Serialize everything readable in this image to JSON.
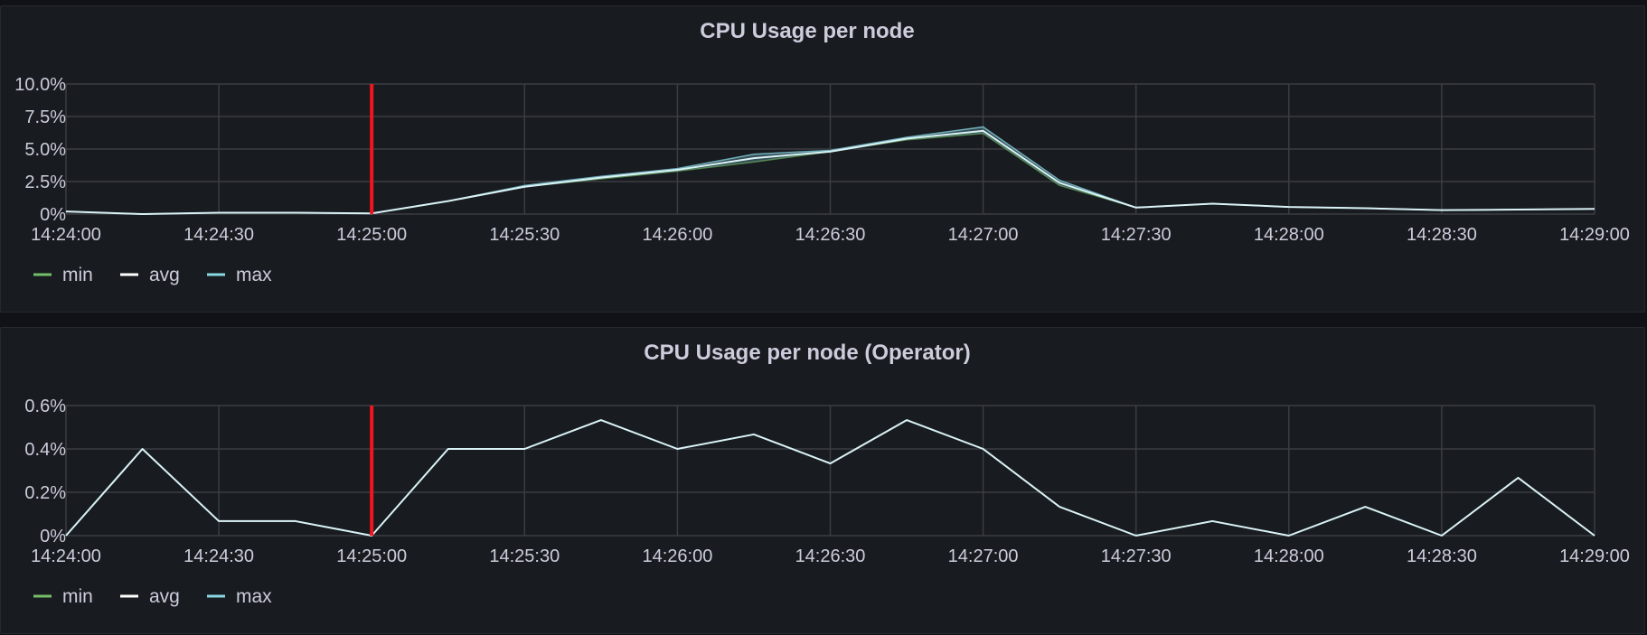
{
  "chart_data": [
    {
      "type": "line",
      "title": "CPU Usage per node",
      "xlabel": "",
      "ylabel": "",
      "y_unit": "%",
      "ylim": [
        0,
        10
      ],
      "yticks": [
        0,
        2.5,
        5,
        7.5,
        10
      ],
      "ytick_labels": [
        "0%",
        "2.5%",
        "5.0%",
        "7.5%",
        "10.0%"
      ],
      "xticks": [
        "14:24:00",
        "14:24:30",
        "14:25:00",
        "14:25:30",
        "14:26:00",
        "14:26:30",
        "14:27:00",
        "14:27:30",
        "14:28:00",
        "14:28:30",
        "14:29:00"
      ],
      "x": [
        "14:24:00",
        "14:24:15",
        "14:24:30",
        "14:24:45",
        "14:25:00",
        "14:25:15",
        "14:25:30",
        "14:25:45",
        "14:26:00",
        "14:26:15",
        "14:26:30",
        "14:26:45",
        "14:27:00",
        "14:27:15",
        "14:27:30",
        "14:27:45",
        "14:28:00",
        "14:28:15",
        "14:28:30",
        "14:28:45",
        "14:29:00"
      ],
      "series": [
        {
          "name": "min",
          "color": "#73bf69",
          "values": [
            0.2,
            0.0,
            0.1,
            0.1,
            0.05,
            1.0,
            2.1,
            2.7,
            3.3,
            4.0,
            4.8,
            5.7,
            6.2,
            2.2,
            0.5,
            0.8,
            0.55,
            0.45,
            0.3,
            0.35,
            0.4
          ]
        },
        {
          "name": "avg",
          "color": "#ffffff",
          "values": [
            0.2,
            0.0,
            0.1,
            0.1,
            0.05,
            1.0,
            2.1,
            2.8,
            3.4,
            4.3,
            4.8,
            5.8,
            6.4,
            2.4,
            0.5,
            0.8,
            0.55,
            0.45,
            0.3,
            0.35,
            0.4
          ]
        },
        {
          "name": "max",
          "color": "#8ad8e5",
          "values": [
            0.2,
            0.0,
            0.1,
            0.1,
            0.05,
            1.0,
            2.2,
            2.9,
            3.5,
            4.6,
            4.9,
            5.9,
            6.7,
            2.6,
            0.5,
            0.8,
            0.55,
            0.45,
            0.3,
            0.35,
            0.4
          ]
        }
      ],
      "annotation_x": "14:25:00",
      "annotation_color": "#f2151f",
      "grid": true,
      "legend_position": "bottom-left"
    },
    {
      "type": "line",
      "title": "CPU Usage per node (Operator)",
      "xlabel": "",
      "ylabel": "",
      "y_unit": "%",
      "ylim": [
        0,
        0.6
      ],
      "yticks": [
        0,
        0.2,
        0.4,
        0.6
      ],
      "ytick_labels": [
        "0%",
        "0.2%",
        "0.4%",
        "0.6%"
      ],
      "xticks": [
        "14:24:00",
        "14:24:30",
        "14:25:00",
        "14:25:30",
        "14:26:00",
        "14:26:30",
        "14:27:00",
        "14:27:30",
        "14:28:00",
        "14:28:30",
        "14:29:00"
      ],
      "x": [
        "14:24:00",
        "14:24:15",
        "14:24:30",
        "14:24:45",
        "14:25:00",
        "14:25:15",
        "14:25:30",
        "14:25:45",
        "14:26:00",
        "14:26:15",
        "14:26:30",
        "14:26:45",
        "14:27:00",
        "14:27:15",
        "14:27:30",
        "14:27:45",
        "14:28:00",
        "14:28:15",
        "14:28:30",
        "14:28:45",
        "14:29:00"
      ],
      "series": [
        {
          "name": "min",
          "color": "#73bf69",
          "values": [
            0.0,
            0.4,
            0.067,
            0.067,
            0.0,
            0.4,
            0.4,
            0.533,
            0.4,
            0.467,
            0.333,
            0.533,
            0.4,
            0.133,
            0.0,
            0.067,
            0.0,
            0.133,
            0.0,
            0.267,
            0.0
          ]
        },
        {
          "name": "avg",
          "color": "#ffffff",
          "values": [
            0.0,
            0.4,
            0.067,
            0.067,
            0.0,
            0.4,
            0.4,
            0.533,
            0.4,
            0.467,
            0.333,
            0.533,
            0.4,
            0.133,
            0.0,
            0.067,
            0.0,
            0.133,
            0.0,
            0.267,
            0.0
          ]
        },
        {
          "name": "max",
          "color": "#8ad8e5",
          "values": [
            0.0,
            0.4,
            0.067,
            0.067,
            0.0,
            0.4,
            0.4,
            0.533,
            0.4,
            0.467,
            0.333,
            0.533,
            0.4,
            0.133,
            0.0,
            0.067,
            0.0,
            0.133,
            0.0,
            0.267,
            0.0
          ]
        }
      ],
      "annotation_x": "14:25:00",
      "annotation_color": "#f2151f",
      "grid": true,
      "legend_position": "bottom-left"
    }
  ]
}
